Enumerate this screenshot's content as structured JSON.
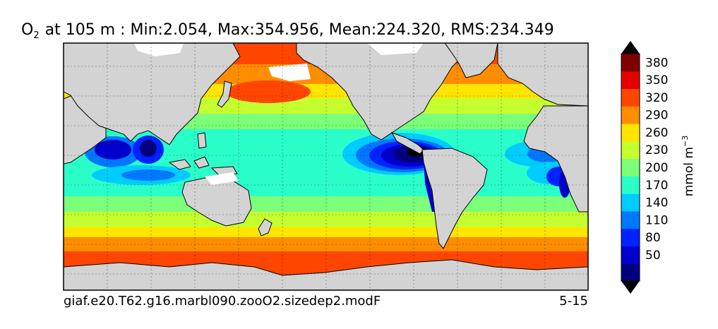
{
  "title": {
    "species": "O",
    "species_sub": "2",
    "rest": "at 105 m : Min:2.054, Max:354.956, Mean:224.320, RMS:234.349"
  },
  "footer": {
    "case_name": "giaf.e20.T62.g16.marbl090.zooO2.sizedep2.modF",
    "years": "5-15"
  },
  "colorbar": {
    "label": "mmol m",
    "label_exp": "−3",
    "ticks": [
      "50",
      "80",
      "110",
      "140",
      "170",
      "200",
      "230",
      "260",
      "290",
      "320",
      "350",
      "380"
    ],
    "colors": [
      "#00007f",
      "#0000cc",
      "#0022ff",
      "#0077ff",
      "#00ccff",
      "#2bffc9",
      "#7cff79",
      "#c6ff30",
      "#ffe500",
      "#ff8d00",
      "#ff4600",
      "#e40000",
      "#7f0000"
    ],
    "extend": "both"
  },
  "chart_data": {
    "type": "heatmap",
    "variable": "O2",
    "depth_m": 105,
    "units": "mmol m^-3",
    "stats": {
      "min": 2.054,
      "max": 354.956,
      "mean": 224.32,
      "rms": 234.349
    },
    "contour_levels": [
      20,
      50,
      80,
      110,
      140,
      170,
      200,
      230,
      260,
      290,
      320,
      350,
      380
    ],
    "colorbar_ticks": [
      50,
      80,
      110,
      140,
      170,
      200,
      230,
      260,
      290,
      320,
      350,
      380
    ],
    "grid": true,
    "land_color": "#d3d3d3"
  }
}
